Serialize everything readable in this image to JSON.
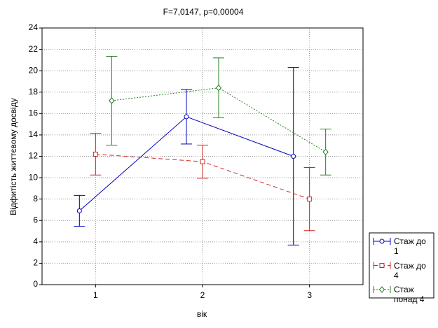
{
  "chart_data": {
    "type": "line",
    "title": "F=7,0147, p=0,00004",
    "x_label": "вік",
    "y_label": "Відфитість життєвому досвіду",
    "categories": [
      "1",
      "2",
      "3"
    ],
    "ylim": [
      0,
      24
    ],
    "yticks": [
      0,
      2,
      4,
      6,
      8,
      10,
      12,
      14,
      16,
      18,
      20,
      22,
      24
    ],
    "grid": true,
    "legend": "right",
    "series": [
      {
        "name": "Стаж до 1",
        "color": "#0000c0",
        "line_style": "solid",
        "marker": "circle",
        "values": [
          6.9,
          15.7,
          12.0
        ],
        "errors": [
          1.45,
          2.55,
          8.3
        ]
      },
      {
        "name": "Стаж до 4",
        "color": "#d02020",
        "line_style": "dashed",
        "marker": "square",
        "values": [
          12.2,
          11.5,
          8.0
        ],
        "errors": [
          1.95,
          1.55,
          2.95
        ]
      },
      {
        "name": "Стаж понад 4",
        "color": "#208020",
        "line_style": "dotted",
        "marker": "diamond",
        "values": [
          17.2,
          18.4,
          12.4
        ],
        "errors": [
          4.15,
          2.8,
          2.15
        ]
      }
    ]
  }
}
